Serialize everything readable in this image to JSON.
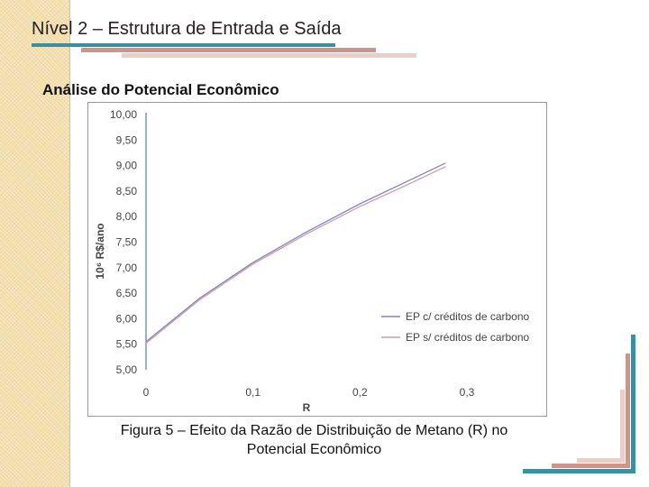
{
  "slide": {
    "title": "Nível 2 – Estrutura de Entrada e Saída",
    "subtitle": "Análise do Potencial Econômico",
    "caption_line1": "Figura 5 – Efeito da Razão de Distribuição de Metano (R) no",
    "caption_line2": "Potencial Econômico",
    "colors": {
      "side_strip": "#f3dfae",
      "bar_teal": "#3b8fa3",
      "bar_rose": "#c8968a",
      "bar_pink": "#e9cfc8"
    }
  },
  "chart_data": {
    "type": "line",
    "xlabel": "R",
    "ylabel": "10⁶ R$/ano",
    "xlim": [
      0,
      0.3
    ],
    "ylim": [
      5.0,
      10.0
    ],
    "x_ticks": [
      0,
      0.1,
      0.2,
      0.3
    ],
    "x_tick_labels": [
      "0",
      "0,1",
      "0,2",
      "0,3"
    ],
    "y_ticks": [
      5.0,
      5.5,
      6.0,
      6.5,
      7.0,
      7.5,
      8.0,
      8.5,
      9.0,
      9.5,
      10.0
    ],
    "y_tick_labels": [
      "5,00",
      "5,50",
      "6,00",
      "6,50",
      "7,00",
      "7,50",
      "8,00",
      "8,50",
      "9,00",
      "9,50",
      "10,00"
    ],
    "grid": false,
    "legend_position": "bottom-right",
    "series": [
      {
        "name": "EP c/ créditos de carbono",
        "color": "#7b86c8",
        "x": [
          0,
          0.05,
          0.1,
          0.15,
          0.2,
          0.25,
          0.28
        ],
        "y": [
          5.55,
          6.4,
          7.1,
          7.7,
          8.25,
          8.75,
          9.05
        ]
      },
      {
        "name": "EP s/ créditos de carbono",
        "color": "#d49a9a",
        "x": [
          0,
          0.05,
          0.1,
          0.15,
          0.2,
          0.25,
          0.28
        ],
        "y": [
          5.52,
          6.37,
          7.07,
          7.66,
          8.2,
          8.68,
          8.98
        ]
      }
    ]
  }
}
